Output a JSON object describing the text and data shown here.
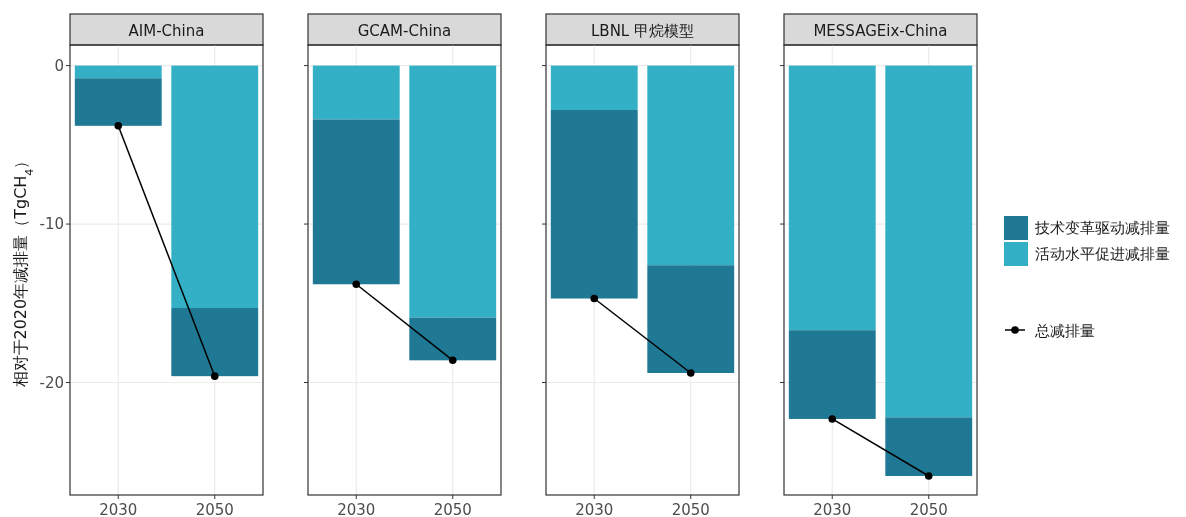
{
  "chart_data": [
    {
      "type": "bar",
      "title": "AIM-China",
      "ylabel": "相对于2020年减排量（TgCH$_{4}$）",
      "categories": [
        "2030",
        "2050"
      ],
      "stacked": true,
      "grid": true,
      "ylim": [
        -27.1,
        1.3
      ],
      "yticks": [
        0,
        -10,
        -20
      ],
      "series": [
        {
          "color": "#33b0c6",
          "values": [
            -0.8,
            -15.3
          ]
        },
        {
          "color": "#1f7894",
          "values": [
            -3.0,
            -4.3
          ]
        },
        {
          "type": "line",
          "color": "#000000",
          "marker": "circle",
          "values": [
            -3.8,
            -19.6
          ]
        }
      ]
    },
    {
      "type": "bar",
      "title": "GCAM-China",
      "categories": [
        "2030",
        "2050"
      ],
      "stacked": true,
      "grid": true,
      "ylim": [
        -27.1,
        1.3
      ],
      "yticks": [
        0,
        -10,
        -20
      ],
      "tick_labels": "x",
      "series": [
        {
          "color": "#33b0c6",
          "values": [
            -3.4,
            -15.9
          ]
        },
        {
          "color": "#1f7894",
          "values": [
            -10.4,
            -2.7
          ]
        },
        {
          "type": "line",
          "color": "#000000",
          "marker": "circle",
          "values": [
            -13.8,
            -18.6
          ]
        }
      ]
    },
    {
      "type": "bar",
      "title": "LBNL 甲烷模型",
      "categories": [
        "2030",
        "2050"
      ],
      "stacked": true,
      "grid": true,
      "ylim": [
        -27.1,
        1.3
      ],
      "yticks": [
        0,
        -10,
        -20
      ],
      "tick_labels": "x",
      "series": [
        {
          "color": "#33b0c6",
          "values": [
            -2.8,
            -12.6
          ]
        },
        {
          "color": "#1f7894",
          "values": [
            -11.9,
            -6.8
          ]
        },
        {
          "type": "line",
          "color": "#000000",
          "marker": "circle",
          "values": [
            -14.7,
            -19.4
          ]
        }
      ]
    },
    {
      "type": "bar",
      "title": "MESSAGEix-China",
      "categories": [
        "2030",
        "2050"
      ],
      "stacked": true,
      "grid": true,
      "ylim": [
        -27.1,
        1.3
      ],
      "yticks": [
        0,
        -10,
        -20
      ],
      "tick_labels": "x",
      "legend": "right",
      "series": [
        {
          "name": "活动水平促进减排量",
          "color": "#33b0c6",
          "values": [
            -16.7,
            -22.2
          ]
        },
        {
          "name": "技术变革驱动减排量",
          "color": "#1f7894",
          "values": [
            -5.6,
            -3.7
          ]
        },
        {
          "name": "总减排量",
          "type": "line",
          "color": "#000000",
          "marker": "circle",
          "values": [
            -22.3,
            -25.9
          ]
        }
      ]
    }
  ]
}
